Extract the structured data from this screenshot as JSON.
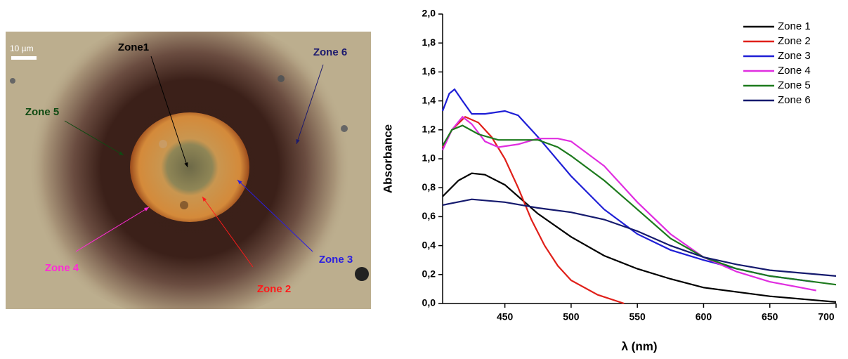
{
  "image": {
    "scale_bar": "10 µm",
    "labels": [
      {
        "text": "Zone1",
        "color": "#000000"
      },
      {
        "text": "Zone 2",
        "color": "#ff1a1a"
      },
      {
        "text": "Zone 3",
        "color": "#2a1ee0"
      },
      {
        "text": "Zone 4",
        "color": "#ff2bd6"
      },
      {
        "text": "Zone 5",
        "color": "#0f4a12"
      },
      {
        "text": "Zone 6",
        "color": "#1c1a6e"
      }
    ]
  },
  "chart_data": {
    "type": "line",
    "x_label": "λ (nm)",
    "y_label": "Absorbance",
    "xlim": [
      403,
      700
    ],
    "xticks": [
      450,
      500,
      550,
      600,
      650,
      700
    ],
    "ylim": [
      0,
      2
    ],
    "yticks": [
      {
        "value": 0,
        "label": "0,0"
      },
      {
        "value": 0.2,
        "label": "0,2"
      },
      {
        "value": 0.4,
        "label": "0,4"
      },
      {
        "value": 0.6,
        "label": "0,6"
      },
      {
        "value": 0.8,
        "label": "0,8"
      },
      {
        "value": 1,
        "label": "1,0"
      },
      {
        "value": 1.2,
        "label": "1,2"
      },
      {
        "value": 1.4,
        "label": "1,4"
      },
      {
        "value": 1.6,
        "label": "1,6"
      },
      {
        "value": 1.8,
        "label": "1,8"
      },
      {
        "value": 2,
        "label": "2,0"
      }
    ],
    "legend": "upper right",
    "series": [
      {
        "name": "Zone 1",
        "color": "#000000",
        "x": [
          403,
          415,
          425,
          435,
          450,
          475,
          500,
          525,
          550,
          575,
          600,
          650,
          700
        ],
        "values": [
          0.74,
          0.85,
          0.9,
          0.89,
          0.82,
          0.62,
          0.46,
          0.33,
          0.24,
          0.17,
          0.11,
          0.05,
          0.01
        ]
      },
      {
        "name": "Zone 2",
        "color": "#e0201a",
        "x": [
          403,
          410,
          420,
          430,
          440,
          450,
          460,
          470,
          480,
          490,
          500,
          520,
          540
        ],
        "values": [
          1.08,
          1.2,
          1.29,
          1.25,
          1.15,
          1.0,
          0.8,
          0.58,
          0.4,
          0.26,
          0.16,
          0.06,
          0.0
        ]
      },
      {
        "name": "Zone 3",
        "color": "#1f1fd6",
        "x": [
          403,
          408,
          412,
          418,
          425,
          435,
          450,
          460,
          475,
          500,
          525,
          550,
          575,
          600,
          625,
          650,
          683
        ],
        "values": [
          1.33,
          1.45,
          1.48,
          1.4,
          1.31,
          1.31,
          1.33,
          1.3,
          1.15,
          0.88,
          0.65,
          0.48,
          0.37,
          0.3,
          0.24,
          0.19,
          0.15
        ]
      },
      {
        "name": "Zone 4",
        "color": "#e02ee0",
        "x": [
          403,
          410,
          418,
          425,
          435,
          445,
          460,
          475,
          490,
          500,
          525,
          550,
          575,
          600,
          625,
          650,
          685
        ],
        "values": [
          1.06,
          1.2,
          1.29,
          1.24,
          1.12,
          1.08,
          1.1,
          1.14,
          1.14,
          1.12,
          0.95,
          0.7,
          0.48,
          0.32,
          0.22,
          0.15,
          0.09
        ]
      },
      {
        "name": "Zone 5",
        "color": "#1d7a1d",
        "x": [
          403,
          410,
          418,
          430,
          445,
          460,
          475,
          490,
          500,
          525,
          550,
          575,
          600,
          625,
          650,
          700
        ],
        "values": [
          1.09,
          1.2,
          1.23,
          1.17,
          1.13,
          1.13,
          1.13,
          1.08,
          1.02,
          0.85,
          0.65,
          0.45,
          0.32,
          0.24,
          0.19,
          0.13
        ]
      },
      {
        "name": "Zone 6",
        "color": "#151a6e",
        "x": [
          403,
          425,
          450,
          475,
          500,
          525,
          550,
          575,
          600,
          625,
          650,
          700
        ],
        "values": [
          0.68,
          0.72,
          0.7,
          0.66,
          0.63,
          0.58,
          0.5,
          0.4,
          0.32,
          0.27,
          0.23,
          0.19
        ]
      }
    ]
  }
}
